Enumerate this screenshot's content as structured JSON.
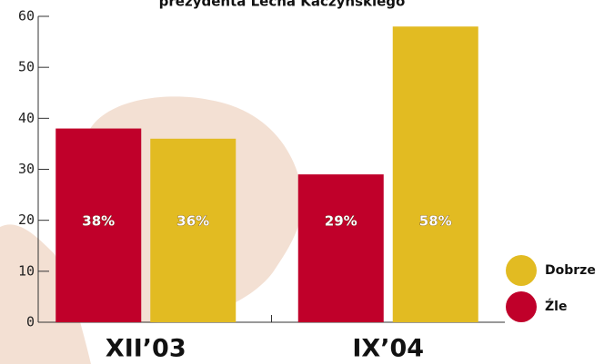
{
  "chart_data": {
    "type": "bar",
    "title": "prezydenta Lecha Kaczyńskiego",
    "categories": [
      "XII’03",
      "IX’04"
    ],
    "series": [
      {
        "name": "Źle",
        "color": "#c0002a",
        "values": [
          38,
          29
        ],
        "value_labels": [
          "38%",
          "29%"
        ]
      },
      {
        "name": "Dobrze",
        "color": "#e2bb22",
        "values": [
          36,
          58
        ],
        "value_labels": [
          "36%",
          "58%"
        ]
      }
    ],
    "ylim": [
      0,
      60
    ],
    "yticks": [
      0,
      10,
      20,
      30,
      40,
      50,
      60
    ]
  }
}
